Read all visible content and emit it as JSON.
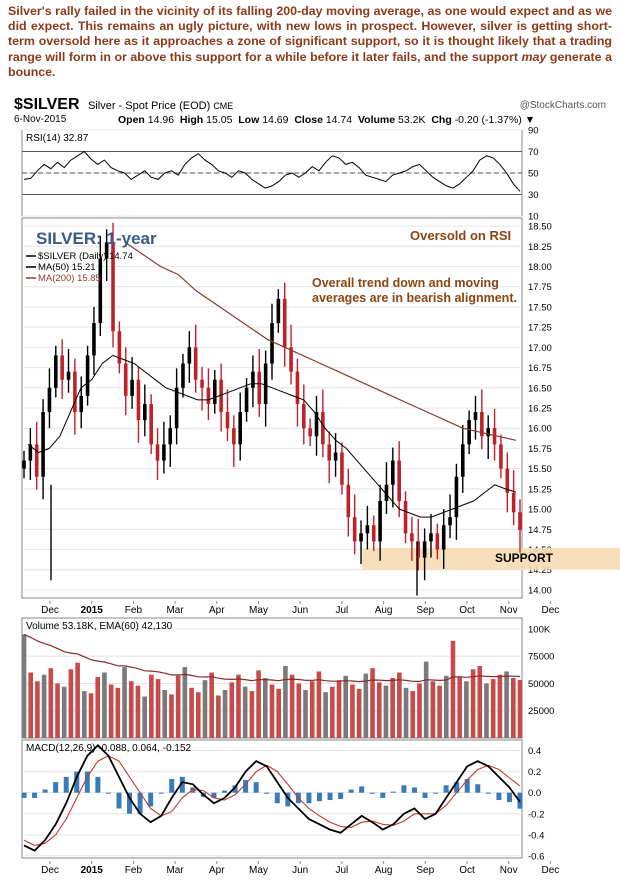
{
  "intro_text": "Silver's rally failed in the vicinity of its falling 200-day moving average, as one would expect and as we did expect. This remains an ugly picture, with new lows in prospect. However, silver is getting short-term oversold here as it approaches a zone of significant support, so it is thought likely that a trading range will form in or above this support for a while before it later fails, and the support may generate a bounce.",
  "intro_before_em": "Silver's rally failed in the vicinity of its falling 200-day moving average, as one would expect and as we did expect. This remains an ugly picture, with new lows in prospect. However, silver is getting short-term oversold here as it approaches a zone of significant support, so it is thought likely that a trading range will form in or above this support for a while before it later fails, and the support ",
  "intro_em": "may",
  "intro_after_em": " generate a bounce.",
  "header": {
    "symbol": "$SILVER",
    "description": "Silver - Spot Price (EOD)",
    "exchange": "CME",
    "source": "@StockCharts.com",
    "date": "6-Nov-2015",
    "open_label": "Open",
    "open": "14.96",
    "high_label": "High",
    "high": "15.05",
    "low_label": "Low",
    "low": "14.69",
    "close_label": "Close",
    "close": "14.74",
    "volume_label": "Volume",
    "volume": "53.2K",
    "chg_label": "Chg",
    "chg": "-0.20 (-1.37%)",
    "chg_marker": "▼"
  },
  "colors": {
    "intro": "#8b3a1a",
    "price_up": "#000000",
    "price_down": "#c0202a",
    "ma50": "#000000",
    "ma200": "#8b3a2e",
    "support_zone": "#f7dcb4",
    "annotation": "#8b4513",
    "title": "#3a5a8c",
    "volume_up": "#7a7a7a",
    "volume_down": "#c84a4a",
    "macd_hist": "#3a7ab8"
  },
  "chart_data": [
    {
      "type": "line",
      "panel": "RSI",
      "legend": "RSI(14) 32.87",
      "y_ticks": [
        "90",
        "70",
        "50",
        "30",
        "10"
      ],
      "ylim": [
        10,
        90
      ],
      "reference_lines": [
        70,
        50,
        30
      ],
      "last_value": 32.87,
      "annotation": "Oversold on RSI",
      "series": [
        {
          "values": [
            44,
            45,
            52,
            58,
            54,
            60,
            55,
            62,
            66,
            70,
            63,
            58,
            62,
            55,
            52,
            50,
            44,
            48,
            52,
            46,
            44,
            50,
            52,
            48,
            58,
            64,
            68,
            62,
            58,
            52,
            50,
            46,
            52,
            50,
            44,
            40,
            36,
            38,
            42,
            48,
            50,
            46,
            50,
            56,
            52,
            60,
            66,
            64,
            58,
            60,
            55,
            48,
            46,
            44,
            42,
            48,
            50,
            52,
            56,
            58,
            52,
            46,
            42,
            38,
            36,
            40,
            46,
            52,
            62,
            66,
            64,
            58,
            50,
            40,
            32.87
          ]
        }
      ]
    },
    {
      "type": "candlestick",
      "panel": "Price",
      "title": "SILVER: 1-year",
      "legend": [
        "$SILVER (Daily) 14.74",
        "MA(50) 15.21",
        "MA(200) 15.85"
      ],
      "y_ticks": [
        "18.50",
        "18.25",
        "18.00",
        "17.75",
        "17.50",
        "17.25",
        "17.00",
        "16.75",
        "16.50",
        "16.25",
        "16.00",
        "15.75",
        "15.50",
        "15.25",
        "15.00",
        "14.75",
        "14.50",
        "14.25",
        "14.00"
      ],
      "ylim": [
        13.9,
        18.6
      ],
      "x_labels": [
        "Dec",
        "2015",
        "Feb",
        "Mar",
        "Apr",
        "May",
        "Jun",
        "Jul",
        "Aug",
        "Sep",
        "Oct",
        "Nov",
        "Dec"
      ],
      "annotations": [
        "Overall trend down and moving",
        "averages are in bearish alignment."
      ],
      "support_label": "SUPPORT",
      "support_zone": [
        14.25,
        14.52
      ],
      "closes": [
        15.6,
        15.8,
        15.4,
        16.2,
        16.5,
        16.9,
        16.6,
        16.7,
        16.2,
        16.4,
        16.9,
        17.3,
        18.1,
        18.3,
        17.2,
        16.8,
        16.4,
        16.6,
        16.1,
        16.3,
        15.8,
        15.6,
        15.8,
        16.0,
        16.5,
        16.8,
        17.0,
        16.6,
        16.5,
        16.3,
        16.6,
        16.2,
        16.0,
        15.8,
        16.2,
        16.5,
        16.7,
        16.3,
        16.8,
        17.3,
        17.6,
        17.0,
        16.7,
        16.3,
        16.0,
        15.9,
        16.2,
        15.8,
        15.6,
        15.7,
        15.3,
        14.9,
        14.6,
        14.7,
        14.8,
        14.6,
        15.1,
        15.3,
        15.6,
        15.1,
        14.7,
        14.6,
        14.4,
        14.6,
        14.7,
        14.5,
        14.8,
        14.9,
        15.4,
        15.8,
        16.1,
        16.2,
        15.9,
        16.0,
        15.8,
        15.5,
        15.2,
        14.96,
        14.74
      ],
      "ma50": [
        15.8,
        15.7,
        15.75,
        15.9,
        16.2,
        16.5,
        16.6,
        16.8,
        16.9,
        16.85,
        16.8,
        16.7,
        16.6,
        16.5,
        16.45,
        16.4,
        16.35,
        16.35,
        16.4,
        16.45,
        16.5,
        16.55,
        16.55,
        16.5,
        16.45,
        16.4,
        16.35,
        16.2,
        16.0,
        15.85,
        15.75,
        15.6,
        15.45,
        15.3,
        15.15,
        15.0,
        14.95,
        14.9,
        14.9,
        14.95,
        15.0,
        15.05,
        15.1,
        15.2,
        15.3,
        15.25,
        15.21
      ],
      "ma200": [
        18.3,
        18.15,
        18.0,
        17.9,
        17.7,
        17.55,
        17.4,
        17.25,
        17.1,
        17.0,
        16.9,
        16.8,
        16.7,
        16.6,
        16.5,
        16.4,
        16.3,
        16.2,
        16.1,
        16.0,
        15.95,
        15.9,
        15.85
      ]
    },
    {
      "type": "bar",
      "panel": "Volume",
      "legend": "Volume 53.18K, EMA(60) 42,130",
      "y_ticks": [
        "100K",
        "75000",
        "50000",
        "25000"
      ],
      "ylim": [
        0,
        110000
      ],
      "ema60_last": 42130,
      "values": [
        95000,
        60000,
        52000,
        58000,
        64000,
        50000,
        47000,
        63000,
        69000,
        43000,
        41000,
        56000,
        60000,
        49000,
        46000,
        65000,
        52000,
        48000,
        38000,
        58000,
        54000,
        44000,
        40000,
        57000,
        65000,
        46000,
        42000,
        53000,
        60000,
        39000,
        44000,
        51000,
        58000,
        47000,
        43000,
        62000,
        55000,
        49000,
        45000,
        66000,
        58000,
        50000,
        44000,
        52000,
        61000,
        42000,
        47000,
        53000,
        57000,
        49000,
        45000,
        59000,
        64000,
        51000,
        48000,
        55000,
        60000,
        46000,
        43000,
        50000,
        70000,
        52000,
        48000,
        57000,
        89000,
        56000,
        52000,
        63000,
        66000,
        50000,
        54000,
        58000,
        61000,
        55000,
        53180
      ]
    },
    {
      "type": "line",
      "panel": "MACD",
      "legend": "MACD(12,26,9) -0.088, 0.064, -0.152",
      "y_ticks": [
        "0.4",
        "0.2",
        "0.0",
        "-0.2",
        "-0.4",
        "-0.6"
      ],
      "ylim": [
        -0.62,
        0.5
      ],
      "x_labels": [
        "Dec",
        "2015",
        "Feb",
        "Mar",
        "Apr",
        "May",
        "Jun",
        "Jul",
        "Aug",
        "Sep",
        "Oct",
        "Nov",
        "Dec"
      ],
      "series": [
        {
          "name": "MACD",
          "values": [
            -0.5,
            -0.55,
            -0.45,
            -0.3,
            -0.1,
            0.15,
            0.35,
            0.45,
            0.35,
            0.15,
            -0.05,
            -0.2,
            -0.28,
            -0.22,
            -0.05,
            0.1,
            0.08,
            -0.02,
            -0.1,
            -0.05,
            0.05,
            0.2,
            0.3,
            0.25,
            0.1,
            -0.05,
            -0.15,
            -0.25,
            -0.3,
            -0.35,
            -0.38,
            -0.3,
            -0.22,
            -0.28,
            -0.35,
            -0.3,
            -0.2,
            -0.15,
            -0.25,
            -0.2,
            -0.05,
            0.1,
            0.25,
            0.3,
            0.25,
            0.15,
            0.05,
            -0.088
          ]
        },
        {
          "name": "Signal",
          "values": [
            -0.45,
            -0.5,
            -0.48,
            -0.4,
            -0.25,
            -0.05,
            0.15,
            0.3,
            0.35,
            0.3,
            0.15,
            0.0,
            -0.15,
            -0.22,
            -0.18,
            -0.05,
            0.03,
            0.02,
            -0.05,
            -0.07,
            -0.02,
            0.08,
            0.2,
            0.26,
            0.2,
            0.08,
            -0.05,
            -0.15,
            -0.22,
            -0.28,
            -0.32,
            -0.33,
            -0.28,
            -0.27,
            -0.3,
            -0.31,
            -0.27,
            -0.2,
            -0.2,
            -0.2,
            -0.12,
            0.0,
            0.12,
            0.22,
            0.26,
            0.22,
            0.14,
            0.064
          ]
        }
      ]
    }
  ]
}
